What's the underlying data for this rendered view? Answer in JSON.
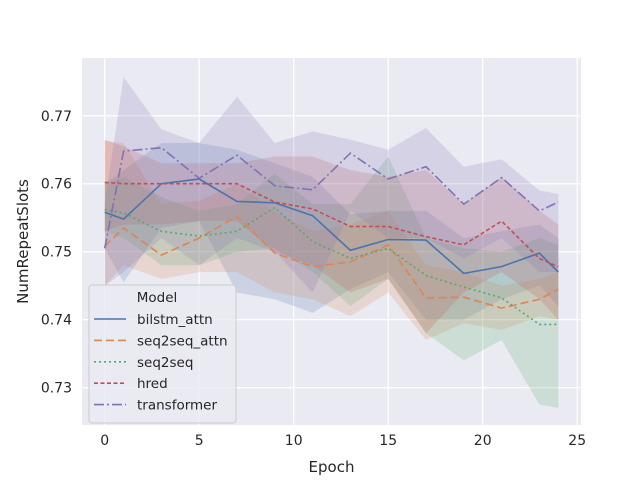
{
  "chart_data": {
    "type": "line",
    "title": "",
    "xlabel": "Epoch",
    "ylabel": "NumRepeatSlots",
    "xlim": [
      -1.2,
      25.2
    ],
    "ylim": [
      0.7245,
      0.7785
    ],
    "xticks": [
      0,
      5,
      10,
      15,
      20,
      25
    ],
    "yticks": [
      0.73,
      0.74,
      0.75,
      0.76,
      0.77
    ],
    "ytick_labels": [
      "0.73",
      "0.74",
      "0.75",
      "0.76",
      "0.77"
    ],
    "grid": true,
    "legend": {
      "title": "Model",
      "placement": "lower-left"
    },
    "x": [
      0,
      1,
      3,
      5,
      7,
      9,
      11,
      13,
      15,
      17,
      19,
      21,
      23,
      24
    ],
    "series": [
      {
        "name": "bilstm_attn",
        "color": "#4c72b0",
        "dash": "solid",
        "values": [
          0.7558,
          0.7548,
          0.76,
          0.7607,
          0.7574,
          0.7572,
          0.7553,
          0.7502,
          0.7518,
          0.7517,
          0.7468,
          0.7478,
          0.7498,
          0.747
        ],
        "lower": [
          0.7505,
          0.7455,
          0.7535,
          0.7545,
          0.744,
          0.743,
          0.741,
          0.7445,
          0.747,
          0.74,
          0.74,
          0.743,
          0.745,
          0.742
        ],
        "upper": [
          0.76,
          0.762,
          0.766,
          0.766,
          0.765,
          0.763,
          0.761,
          0.7555,
          0.756,
          0.756,
          0.752,
          0.753,
          0.754,
          0.752
        ]
      },
      {
        "name": "seq2seq_attn",
        "color": "#dd8452",
        "dash": "8,4",
        "values": [
          0.7508,
          0.7535,
          0.7495,
          0.752,
          0.7552,
          0.7498,
          0.7478,
          0.7485,
          0.751,
          0.7432,
          0.7433,
          0.7417,
          0.743,
          0.7445
        ],
        "lower": [
          0.745,
          0.748,
          0.746,
          0.747,
          0.747,
          0.744,
          0.743,
          0.7405,
          0.744,
          0.737,
          0.7395,
          0.7385,
          0.7405,
          0.74
        ],
        "upper": [
          0.7663,
          0.766,
          0.757,
          0.7575,
          0.76,
          0.756,
          0.753,
          0.754,
          0.756,
          0.748,
          0.747,
          0.745,
          0.746,
          0.747
        ]
      },
      {
        "name": "seq2seq",
        "color": "#55a868",
        "dash": "2,3",
        "values": [
          0.7562,
          0.7557,
          0.753,
          0.7523,
          0.753,
          0.7565,
          0.7515,
          0.749,
          0.7505,
          0.7465,
          0.7448,
          0.7432,
          0.7393,
          0.7393
        ],
        "lower": [
          0.753,
          0.752,
          0.748,
          0.748,
          0.75,
          0.7505,
          0.747,
          0.742,
          0.746,
          0.738,
          0.734,
          0.737,
          0.7275,
          0.727
        ],
        "upper": [
          0.76,
          0.761,
          0.758,
          0.756,
          0.757,
          0.7615,
          0.757,
          0.757,
          0.764,
          0.752,
          0.7505,
          0.75,
          0.752,
          0.751
        ]
      },
      {
        "name": "hred",
        "color": "#c44e52",
        "dash": "4,2.5",
        "values": [
          0.7602,
          0.76,
          0.76,
          0.76,
          0.76,
          0.7573,
          0.7563,
          0.7537,
          0.7537,
          0.7522,
          0.751,
          0.7545,
          0.749,
          0.7478
        ],
        "lower": [
          0.753,
          0.754,
          0.754,
          0.7545,
          0.7545,
          0.75,
          0.748,
          0.744,
          0.746,
          0.738,
          0.744,
          0.747,
          0.743,
          0.74
        ],
        "upper": [
          0.7665,
          0.7655,
          0.763,
          0.763,
          0.763,
          0.764,
          0.764,
          0.762,
          0.761,
          0.762,
          0.757,
          0.761,
          0.756,
          0.754
        ]
      },
      {
        "name": "transformer",
        "color": "#8172b3",
        "dash": "10,3,2,3",
        "values": [
          0.7505,
          0.7648,
          0.7653,
          0.7608,
          0.7642,
          0.7597,
          0.7591,
          0.7645,
          0.7607,
          0.7625,
          0.757,
          0.7609,
          0.756,
          0.7573
        ],
        "lower": [
          0.745,
          0.747,
          0.752,
          0.748,
          0.752,
          0.75,
          0.744,
          0.756,
          0.752,
          0.752,
          0.749,
          0.752,
          0.747,
          0.747
        ],
        "upper": [
          0.757,
          0.7757,
          0.768,
          0.766,
          0.7728,
          0.766,
          0.7677,
          0.7665,
          0.765,
          0.7682,
          0.7625,
          0.7636,
          0.759,
          0.7585
        ]
      }
    ]
  }
}
